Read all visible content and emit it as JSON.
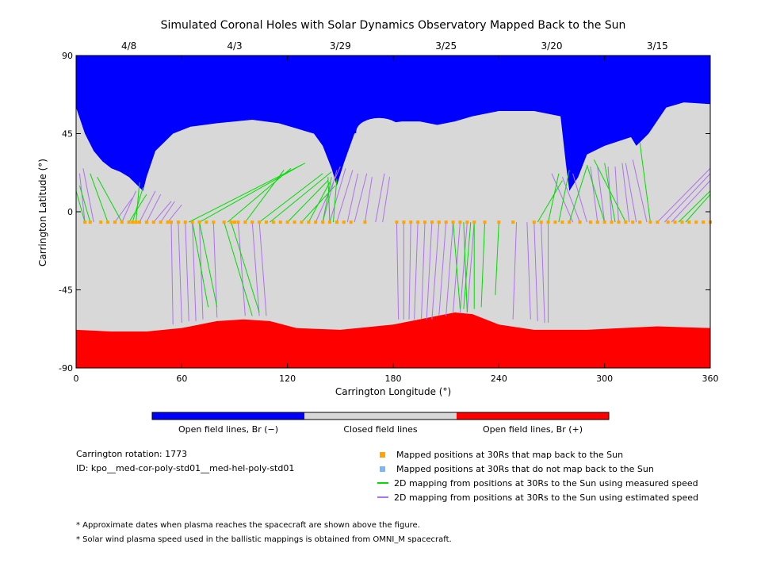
{
  "chart_data": {
    "type": "map",
    "title": "Simulated Coronal Holes with Solar Dynamics Observatory Mapped Back to the Sun",
    "xlabel": "Carrington Longitude (°)",
    "ylabel": "Carrington Latitude (°)",
    "xlim": [
      0,
      360
    ],
    "ylim": [
      -90,
      90
    ],
    "x_ticks": [
      "0",
      "60",
      "120",
      "180",
      "240",
      "300",
      "360"
    ],
    "y_ticks": [
      "90",
      "45",
      "0",
      "-45",
      "-90"
    ],
    "top_dates": [
      {
        "label": "4/8",
        "lon": 30
      },
      {
        "label": "4/3",
        "lon": 90
      },
      {
        "label": "3/29",
        "lon": 150
      },
      {
        "label": "3/25",
        "lon": 210
      },
      {
        "label": "3/20",
        "lon": 270
      },
      {
        "label": "3/15",
        "lon": 330
      }
    ],
    "colors": {
      "open_negative": "#0000ff",
      "closed": "#d8d8d8",
      "open_positive": "#ff0000",
      "mapped_point": "#ffa500",
      "unmapped_point": "#7ab8f5",
      "measured_line": "#00dd00",
      "estimated_line": "#b070f0"
    },
    "colorbar": [
      {
        "label": "Open field lines, Br (−)",
        "color": "#0000ff"
      },
      {
        "label": "Closed field lines",
        "color": "#d8d8d8"
      },
      {
        "label": "Open field lines, Br (+)",
        "color": "#ff0000"
      }
    ],
    "north_boundary": [
      [
        0,
        60
      ],
      [
        5,
        45
      ],
      [
        10,
        35
      ],
      [
        15,
        29
      ],
      [
        20,
        25
      ],
      [
        25,
        23
      ],
      [
        30,
        20
      ],
      [
        35,
        15
      ],
      [
        38,
        12
      ],
      [
        40,
        20
      ],
      [
        45,
        35
      ],
      [
        55,
        45
      ],
      [
        65,
        49
      ],
      [
        80,
        51
      ],
      [
        100,
        53
      ],
      [
        115,
        51
      ],
      [
        125,
        48
      ],
      [
        135,
        45
      ],
      [
        140,
        38
      ],
      [
        145,
        25
      ],
      [
        148,
        15
      ],
      [
        152,
        28
      ],
      [
        158,
        45
      ],
      [
        170,
        50
      ],
      [
        185,
        52
      ],
      [
        195,
        52
      ],
      [
        205,
        50
      ],
      [
        215,
        52
      ],
      [
        225,
        55
      ],
      [
        240,
        58
      ],
      [
        260,
        58
      ],
      [
        275,
        55
      ],
      [
        278,
        28
      ],
      [
        280,
        12
      ],
      [
        285,
        20
      ],
      [
        290,
        33
      ],
      [
        300,
        38
      ],
      [
        315,
        43
      ],
      [
        318,
        38
      ],
      [
        325,
        45
      ],
      [
        335,
        60
      ],
      [
        345,
        63
      ],
      [
        360,
        62
      ]
    ],
    "north_island": {
      "lon": 172,
      "lat": 46,
      "half_width_lon": 13,
      "half_height_lat": 8
    },
    "south_boundary": [
      [
        0,
        -68
      ],
      [
        20,
        -69
      ],
      [
        40,
        -69
      ],
      [
        60,
        -67
      ],
      [
        80,
        -63
      ],
      [
        95,
        -62
      ],
      [
        110,
        -63
      ],
      [
        125,
        -67
      ],
      [
        150,
        -68
      ],
      [
        180,
        -65
      ],
      [
        200,
        -61
      ],
      [
        215,
        -58
      ],
      [
        225,
        -59
      ],
      [
        240,
        -65
      ],
      [
        260,
        -68
      ],
      [
        290,
        -68
      ],
      [
        310,
        -67
      ],
      [
        330,
        -66
      ],
      [
        360,
        -67
      ]
    ],
    "mapped_points_lat": -6,
    "mapped_points_lon": [
      5,
      8,
      14,
      18,
      22,
      26,
      30,
      32,
      34,
      36,
      40,
      44,
      48,
      52,
      54,
      58,
      62,
      66,
      70,
      74,
      78,
      84,
      88,
      90,
      92,
      96,
      100,
      104,
      108,
      112,
      116,
      120,
      124,
      128,
      132,
      136,
      140,
      144,
      148,
      152,
      156,
      164,
      182,
      186,
      190,
      194,
      198,
      202,
      206,
      210,
      214,
      218,
      222,
      226,
      232,
      240,
      248,
      260,
      264,
      268,
      272,
      276,
      280,
      286,
      292,
      296,
      300,
      304,
      308,
      312,
      316,
      320,
      326,
      330,
      336,
      340,
      344,
      348,
      352,
      356,
      360
    ],
    "measured_lines": [
      [
        5,
        -6,
        0,
        12
      ],
      [
        8,
        -6,
        2,
        15
      ],
      [
        18,
        -6,
        8,
        22
      ],
      [
        26,
        -6,
        12,
        20
      ],
      [
        30,
        -6,
        40,
        10
      ],
      [
        32,
        -6,
        38,
        14
      ],
      [
        34,
        -6,
        36,
        17
      ],
      [
        64,
        -6,
        130,
        28
      ],
      [
        70,
        -6,
        128,
        27
      ],
      [
        86,
        -6,
        122,
        25
      ],
      [
        96,
        -6,
        118,
        24
      ],
      [
        104,
        -6,
        140,
        22
      ],
      [
        110,
        -6,
        145,
        23
      ],
      [
        120,
        -6,
        143,
        18
      ],
      [
        128,
        -6,
        147,
        15
      ],
      [
        132,
        -6,
        144,
        17
      ],
      [
        140,
        -6,
        145,
        20
      ],
      [
        144,
        -6,
        143,
        20
      ],
      [
        146,
        -6,
        148,
        19
      ],
      [
        262,
        -6,
        276,
        18
      ],
      [
        268,
        -6,
        274,
        22
      ],
      [
        274,
        -6,
        280,
        24
      ],
      [
        280,
        -6,
        290,
        26
      ],
      [
        300,
        -6,
        290,
        27
      ],
      [
        306,
        -6,
        300,
        28
      ],
      [
        312,
        -6,
        294,
        30
      ],
      [
        326,
        -6,
        320,
        40
      ],
      [
        342,
        -6,
        360,
        12
      ],
      [
        346,
        -6,
        360,
        10
      ],
      [
        66,
        -6,
        75,
        -55
      ],
      [
        70,
        -6,
        80,
        -55
      ],
      [
        84,
        -6,
        100,
        -60
      ],
      [
        88,
        -6,
        104,
        -58
      ],
      [
        214,
        -6,
        218,
        -56
      ],
      [
        220,
        -6,
        222,
        -58
      ],
      [
        224,
        -6,
        220,
        -56
      ],
      [
        226,
        -6,
        226,
        -56
      ],
      [
        232,
        -6,
        230,
        -55
      ],
      [
        240,
        -6,
        238,
        -48
      ]
    ],
    "estimated_lines": [
      [
        0,
        -6,
        0,
        12
      ],
      [
        5,
        -6,
        2,
        22
      ],
      [
        10,
        -6,
        4,
        25
      ],
      [
        22,
        -6,
        32,
        8
      ],
      [
        26,
        -6,
        34,
        12
      ],
      [
        36,
        -6,
        45,
        12
      ],
      [
        40,
        -6,
        48,
        10
      ],
      [
        44,
        -6,
        54,
        6
      ],
      [
        48,
        -6,
        56,
        6
      ],
      [
        52,
        -6,
        60,
        4
      ],
      [
        136,
        -6,
        150,
        26
      ],
      [
        140,
        -6,
        148,
        24
      ],
      [
        144,
        -6,
        153,
        25
      ],
      [
        148,
        -6,
        157,
        24
      ],
      [
        154,
        -6,
        160,
        22
      ],
      [
        158,
        -6,
        165,
        22
      ],
      [
        164,
        -6,
        168,
        20
      ],
      [
        170,
        -6,
        175,
        22
      ],
      [
        174,
        -6,
        178,
        20
      ],
      [
        182,
        -6,
        183,
        -62
      ],
      [
        186,
        -6,
        186,
        -62
      ],
      [
        190,
        -6,
        189,
        -62
      ],
      [
        194,
        -6,
        192,
        -62
      ],
      [
        198,
        -6,
        196,
        -62
      ],
      [
        202,
        -6,
        199,
        -62
      ],
      [
        206,
        -6,
        202,
        -62
      ],
      [
        210,
        -6,
        206,
        -60
      ],
      [
        214,
        -6,
        210,
        -60
      ],
      [
        218,
        -6,
        214,
        -58
      ],
      [
        222,
        -6,
        218,
        -58
      ],
      [
        226,
        -6,
        222,
        -58
      ],
      [
        54,
        -6,
        55,
        -65
      ],
      [
        58,
        -6,
        60,
        -64
      ],
      [
        62,
        -6,
        64,
        -63
      ],
      [
        66,
        -6,
        68,
        -63
      ],
      [
        70,
        -6,
        72,
        -62
      ],
      [
        78,
        -6,
        80,
        -61
      ],
      [
        92,
        -6,
        96,
        -60
      ],
      [
        100,
        -6,
        104,
        -60
      ],
      [
        104,
        -6,
        108,
        -60
      ],
      [
        250,
        -6,
        248,
        -62
      ],
      [
        256,
        -6,
        258,
        -62
      ],
      [
        260,
        -6,
        262,
        -63
      ],
      [
        264,
        -6,
        266,
        -64
      ],
      [
        268,
        -6,
        268,
        -64
      ],
      [
        282,
        -6,
        270,
        22
      ],
      [
        286,
        -6,
        276,
        20
      ],
      [
        290,
        -6,
        282,
        22
      ],
      [
        296,
        -6,
        292,
        26
      ],
      [
        300,
        -6,
        296,
        26
      ],
      [
        304,
        -6,
        302,
        26
      ],
      [
        308,
        -6,
        306,
        26
      ],
      [
        314,
        -6,
        310,
        28
      ],
      [
        318,
        -6,
        312,
        28
      ],
      [
        324,
        -6,
        316,
        30
      ],
      [
        330,
        -6,
        360,
        25
      ],
      [
        334,
        -6,
        360,
        22
      ],
      [
        338,
        -6,
        360,
        18
      ]
    ],
    "legend": [
      {
        "label": "Mapped positions at 30Rs that map back to the Sun",
        "kind": "square",
        "color": "#ffa500"
      },
      {
        "label": "Mapped positions at 30Rs that do not map back to the Sun",
        "kind": "square",
        "color": "#7ab8f5"
      },
      {
        "label": "2D mapping from positions at 30Rs to the Sun using measured speed",
        "kind": "line",
        "color": "#00dd00"
      },
      {
        "label": "2D mapping from positions at 30Rs to the Sun using estimated speed",
        "kind": "line",
        "color": "#b070f0"
      }
    ]
  },
  "info": {
    "rotation": "Carrington rotation: 1773",
    "id": "ID: kpo__med-cor-poly-std01__med-hel-poly-std01"
  },
  "notes": [
    "* Approximate dates when plasma reaches the spacecraft are shown above the figure.",
    "* Solar wind plasma speed used in the ballistic mappings is obtained from OMNI_M spacecraft."
  ]
}
